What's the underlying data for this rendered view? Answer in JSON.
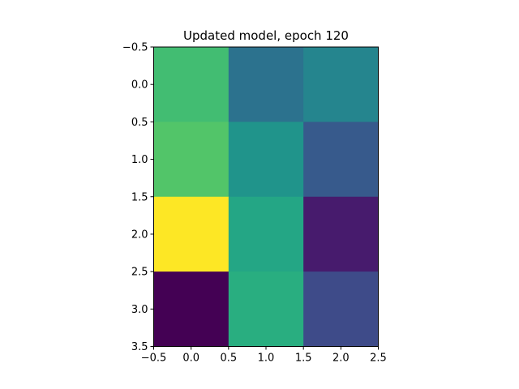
{
  "chart_data": {
    "type": "heatmap",
    "title": "Updated model, epoch 120",
    "xlabel": "",
    "ylabel": "",
    "xlim": [
      -0.5,
      2.5
    ],
    "ylim": [
      3.5,
      -0.5
    ],
    "x_ticks": [
      -0.5,
      0.0,
      0.5,
      1.0,
      1.5,
      2.0,
      2.5
    ],
    "y_ticks": [
      -0.5,
      0.0,
      0.5,
      1.0,
      1.5,
      2.0,
      2.5,
      3.0,
      3.5
    ],
    "x_tick_labels": [
      "−0.5",
      "0.0",
      "0.5",
      "1.0",
      "1.5",
      "2.0",
      "2.5"
    ],
    "y_tick_labels": [
      "−0.5",
      "0.0",
      "0.5",
      "1.0",
      "1.5",
      "2.0",
      "2.5",
      "3.0",
      "3.5"
    ],
    "colormap": "viridis",
    "grid": false,
    "legend": "none",
    "values": [
      [
        0.76,
        0.41,
        0.5
      ],
      [
        0.8,
        0.57,
        0.31
      ],
      [
        1.0,
        0.65,
        0.08
      ],
      [
        0.0,
        0.69,
        0.25
      ]
    ]
  }
}
